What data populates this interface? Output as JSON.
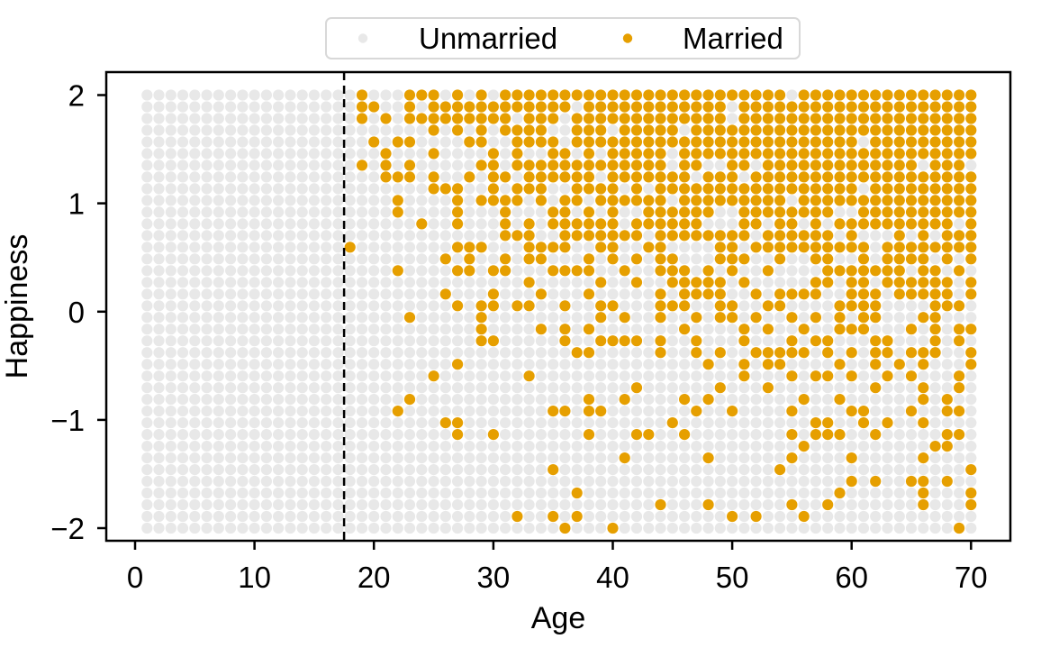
{
  "chart_data": {
    "type": "scatter",
    "title": "",
    "xlabel": "Age",
    "ylabel": "Happiness",
    "xlim": [
      -2.4,
      73.3
    ],
    "ylim": [
      -2.17,
      2.21
    ],
    "x_ticks": [
      0,
      10,
      20,
      30,
      40,
      50,
      60,
      70
    ],
    "x_tick_labels": [
      "0",
      "10",
      "20",
      "30",
      "40",
      "50",
      "60",
      "70"
    ],
    "y_ticks": [
      2,
      1,
      0,
      -1,
      -2
    ],
    "y_tick_labels": [
      "2",
      "1",
      "0",
      "−1",
      "−2"
    ],
    "grid_on": false,
    "legend_position": "top-center",
    "point_grid": {
      "description": "One point per (age, happiness) cell on a regular lattice",
      "age_min": 1,
      "age_max": 70,
      "happiness_min": -2,
      "happiness_max": 2,
      "happiness_levels": 38
    },
    "vline": {
      "x": 17.5,
      "style": "dashed",
      "color": "#000000"
    },
    "series": [
      {
        "name": "Unmarried",
        "color": "#E8E8E8",
        "marker": "circle"
      },
      {
        "name": "Married",
        "color": "#E69F00",
        "marker": "circle"
      }
    ],
    "married_pattern": {
      "description": "Points with age >= marriage_start_age are Married with probability 1-(1-invlogit(happiness+logit_offset))^(age-(marriage_start_age-1)); probability of being married increases with age and with happiness. All points left of the dashed line (age < 18) are Unmarried.",
      "marriage_start_age": 18,
      "logit_offset": -4
    },
    "frame_color": "#000000",
    "background_color": "#ffffff",
    "legend_border_color": "#D8D8D8"
  }
}
